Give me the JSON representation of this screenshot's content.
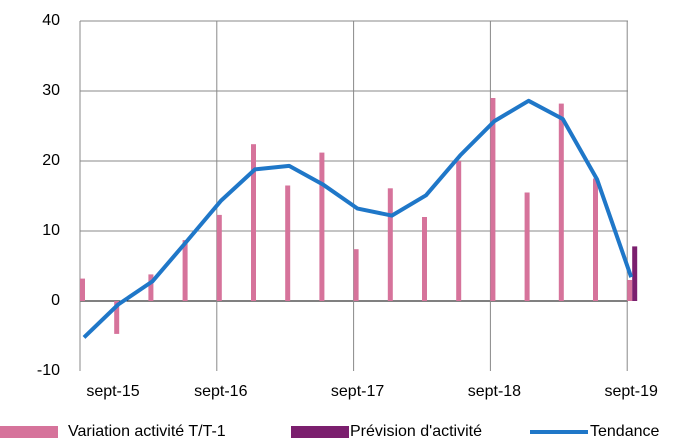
{
  "chart_data": {
    "type": "bar-line",
    "categories": [
      "sept-15",
      null,
      null,
      null,
      "sept-16",
      null,
      null,
      null,
      "sept-17",
      null,
      null,
      null,
      "sept-18",
      null,
      null,
      null,
      "sept-19"
    ],
    "series": [
      {
        "name": "Variation activité T/T-1",
        "color": "#d6739b",
        "type": "bar",
        "values": [
          3.2,
          -4.7,
          3.8,
          8.7,
          12.3,
          22.4,
          16.5,
          21.2,
          7.4,
          16.1,
          12.0,
          20.0,
          29.0,
          15.5,
          28.2,
          17.5,
          3.0
        ]
      },
      {
        "name": "Prévision d'activité",
        "color": "#7b1f6e",
        "type": "bar",
        "values": [
          null,
          null,
          null,
          null,
          null,
          null,
          null,
          null,
          null,
          null,
          null,
          null,
          null,
          null,
          null,
          null,
          7.8
        ]
      },
      {
        "name": "Tendance",
        "color": "#1f77c8",
        "type": "line",
        "values": [
          -5.2,
          -0.5,
          2.8,
          8.5,
          14.3,
          18.8,
          19.3,
          16.6,
          13.2,
          12.2,
          15.1,
          20.8,
          25.7,
          28.6,
          26.0,
          17.4,
          3.4
        ]
      }
    ],
    "ylim": [
      -10,
      40
    ],
    "yticks": [
      -10,
      0,
      10,
      20,
      30,
      40
    ],
    "grid": true,
    "legend": "bottom"
  }
}
